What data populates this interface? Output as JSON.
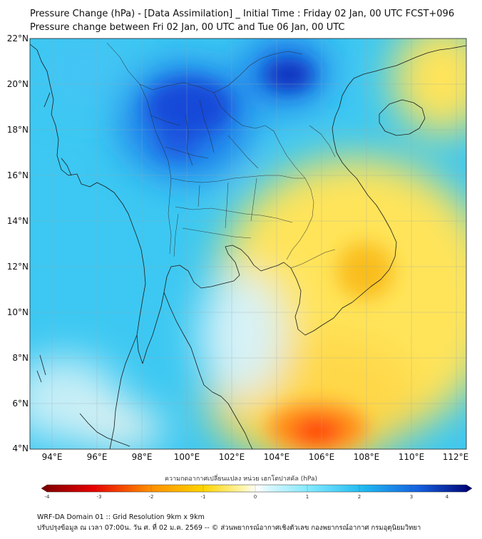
{
  "header": {
    "title_line1": "Pressure Change (hPa) - [Data Assimilation] _ Initial Time : Friday 02 Jan, 00 UTC FCST+096",
    "title_line2": "Pressure change between Fri 02 Jan, 00 UTC and Tue 06 Jan, 00 UTC"
  },
  "map": {
    "lat_ticks": [
      "22°N",
      "20°N",
      "18°N",
      "16°N",
      "14°N",
      "12°N",
      "10°N",
      "8°N",
      "6°N",
      "4°N"
    ],
    "lon_ticks": [
      "94°E",
      "96°E",
      "98°E",
      "100°E",
      "102°E",
      "104°E",
      "106°E",
      "108°E",
      "110°E",
      "112°E"
    ],
    "lat_range": [
      4,
      22
    ],
    "lon_range": [
      93,
      112.5
    ],
    "grid": true,
    "features": [
      {
        "label": "pressure-fall-max",
        "lon": 106.2,
        "lat": 4.7,
        "value": -1.8
      },
      {
        "label": "pressure-fall-east",
        "lon": 108.3,
        "lat": 11.8,
        "value": -0.9
      },
      {
        "label": "pressure-rise-max-north",
        "lon": 104.5,
        "lat": 20.6,
        "value": 3.5
      },
      {
        "label": "pressure-rise-thailand",
        "lon": 99.8,
        "lat": 19.2,
        "value": 3.0
      }
    ]
  },
  "colorbar": {
    "title": "ความกดอากาศเปลี่ยนแปลง หน่วย เฮกโตปาสคัล (hPa)",
    "min": -4,
    "max": 4,
    "ticks": [
      "-4",
      "-3",
      "-2",
      "-1",
      "0",
      "1",
      "2",
      "3",
      "4"
    ],
    "colors": {
      "neg4": "#7a0000",
      "neg3": "#e60000",
      "neg2": "#ff8c00",
      "neg1": "#ffd400",
      "zero": "#ffffff",
      "pos1": "#7ee8ff",
      "pos2": "#1fb8f0",
      "pos3": "#1560e0",
      "pos4": "#000070"
    }
  },
  "footer": {
    "line1": "WRF-DA Domain 01 :: Grid Resolution 9km x 9km",
    "line2": "ปรับปรุงข้อมูล ณ เวลา 07:00น. วัน ศ. ที่ 02 ม.ค. 2569 -- © ส่วนพยากรณ์อากาศเชิงตัวเลข กองพยากรณ์อากาศ กรมอุตุนิยมวิทยา"
  }
}
